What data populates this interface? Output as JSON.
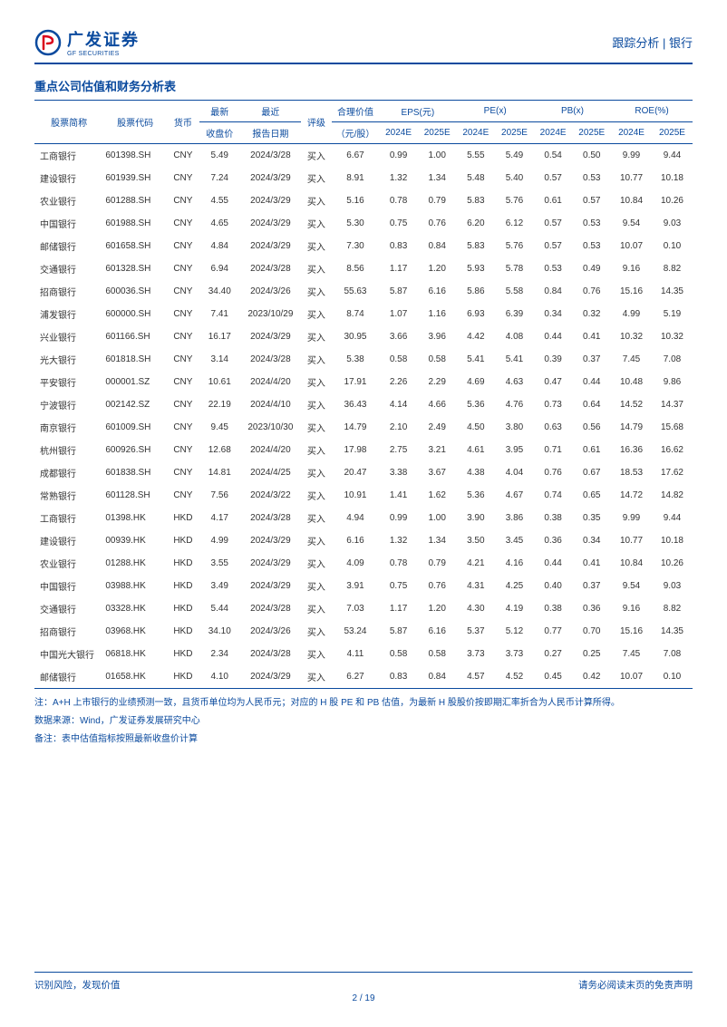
{
  "header": {
    "logo_cn": "广发证券",
    "logo_en": "GF SECURITIES",
    "report_type": "跟踪分析 | 银行"
  },
  "table": {
    "title": "重点公司估值和财务分析表",
    "columns_top": {
      "name": "股票简称",
      "code": "股票代码",
      "currency": "货币",
      "price": "最新",
      "report_date": "最近",
      "rating": "评级",
      "fair_value": "合理价值",
      "eps": "EPS(元)",
      "pe": "PE(x)",
      "pb": "PB(x)",
      "roe": "ROE(%)"
    },
    "columns_sub": {
      "price": "收盘价",
      "report_date": "报告日期",
      "fair_value": "（元/股）",
      "y2024e": "2024E",
      "y2025e": "2025E"
    },
    "rows": [
      {
        "name": "工商银行",
        "code": "601398.SH",
        "curr": "CNY",
        "price": "5.49",
        "date": "2024/3/28",
        "rating": "买入",
        "fv": "6.67",
        "eps24": "0.99",
        "eps25": "1.00",
        "pe24": "5.55",
        "pe25": "5.49",
        "pb24": "0.54",
        "pb25": "0.50",
        "roe24": "9.99",
        "roe25": "9.44"
      },
      {
        "name": "建设银行",
        "code": "601939.SH",
        "curr": "CNY",
        "price": "7.24",
        "date": "2024/3/29",
        "rating": "买入",
        "fv": "8.91",
        "eps24": "1.32",
        "eps25": "1.34",
        "pe24": "5.48",
        "pe25": "5.40",
        "pb24": "0.57",
        "pb25": "0.53",
        "roe24": "10.77",
        "roe25": "10.18"
      },
      {
        "name": "农业银行",
        "code": "601288.SH",
        "curr": "CNY",
        "price": "4.55",
        "date": "2024/3/29",
        "rating": "买入",
        "fv": "5.16",
        "eps24": "0.78",
        "eps25": "0.79",
        "pe24": "5.83",
        "pe25": "5.76",
        "pb24": "0.61",
        "pb25": "0.57",
        "roe24": "10.84",
        "roe25": "10.26"
      },
      {
        "name": "中国银行",
        "code": "601988.SH",
        "curr": "CNY",
        "price": "4.65",
        "date": "2024/3/29",
        "rating": "买入",
        "fv": "5.30",
        "eps24": "0.75",
        "eps25": "0.76",
        "pe24": "6.20",
        "pe25": "6.12",
        "pb24": "0.57",
        "pb25": "0.53",
        "roe24": "9.54",
        "roe25": "9.03"
      },
      {
        "name": "邮储银行",
        "code": "601658.SH",
        "curr": "CNY",
        "price": "4.84",
        "date": "2024/3/29",
        "rating": "买入",
        "fv": "7.30",
        "eps24": "0.83",
        "eps25": "0.84",
        "pe24": "5.83",
        "pe25": "5.76",
        "pb24": "0.57",
        "pb25": "0.53",
        "roe24": "10.07",
        "roe25": "0.10"
      },
      {
        "name": "交通银行",
        "code": "601328.SH",
        "curr": "CNY",
        "price": "6.94",
        "date": "2024/3/28",
        "rating": "买入",
        "fv": "8.56",
        "eps24": "1.17",
        "eps25": "1.20",
        "pe24": "5.93",
        "pe25": "5.78",
        "pb24": "0.53",
        "pb25": "0.49",
        "roe24": "9.16",
        "roe25": "8.82"
      },
      {
        "name": "招商银行",
        "code": "600036.SH",
        "curr": "CNY",
        "price": "34.40",
        "date": "2024/3/26",
        "rating": "买入",
        "fv": "55.63",
        "eps24": "5.87",
        "eps25": "6.16",
        "pe24": "5.86",
        "pe25": "5.58",
        "pb24": "0.84",
        "pb25": "0.76",
        "roe24": "15.16",
        "roe25": "14.35"
      },
      {
        "name": "浦发银行",
        "code": "600000.SH",
        "curr": "CNY",
        "price": "7.41",
        "date": "2023/10/29",
        "rating": "买入",
        "fv": "8.74",
        "eps24": "1.07",
        "eps25": "1.16",
        "pe24": "6.93",
        "pe25": "6.39",
        "pb24": "0.34",
        "pb25": "0.32",
        "roe24": "4.99",
        "roe25": "5.19"
      },
      {
        "name": "兴业银行",
        "code": "601166.SH",
        "curr": "CNY",
        "price": "16.17",
        "date": "2024/3/29",
        "rating": "买入",
        "fv": "30.95",
        "eps24": "3.66",
        "eps25": "3.96",
        "pe24": "4.42",
        "pe25": "4.08",
        "pb24": "0.44",
        "pb25": "0.41",
        "roe24": "10.32",
        "roe25": "10.32"
      },
      {
        "name": "光大银行",
        "code": "601818.SH",
        "curr": "CNY",
        "price": "3.14",
        "date": "2024/3/28",
        "rating": "买入",
        "fv": "5.38",
        "eps24": "0.58",
        "eps25": "0.58",
        "pe24": "5.41",
        "pe25": "5.41",
        "pb24": "0.39",
        "pb25": "0.37",
        "roe24": "7.45",
        "roe25": "7.08"
      },
      {
        "name": "平安银行",
        "code": "000001.SZ",
        "curr": "CNY",
        "price": "10.61",
        "date": "2024/4/20",
        "rating": "买入",
        "fv": "17.91",
        "eps24": "2.26",
        "eps25": "2.29",
        "pe24": "4.69",
        "pe25": "4.63",
        "pb24": "0.47",
        "pb25": "0.44",
        "roe24": "10.48",
        "roe25": "9.86"
      },
      {
        "name": "宁波银行",
        "code": "002142.SZ",
        "curr": "CNY",
        "price": "22.19",
        "date": "2024/4/10",
        "rating": "买入",
        "fv": "36.43",
        "eps24": "4.14",
        "eps25": "4.66",
        "pe24": "5.36",
        "pe25": "4.76",
        "pb24": "0.73",
        "pb25": "0.64",
        "roe24": "14.52",
        "roe25": "14.37"
      },
      {
        "name": "南京银行",
        "code": "601009.SH",
        "curr": "CNY",
        "price": "9.45",
        "date": "2023/10/30",
        "rating": "买入",
        "fv": "14.79",
        "eps24": "2.10",
        "eps25": "2.49",
        "pe24": "4.50",
        "pe25": "3.80",
        "pb24": "0.63",
        "pb25": "0.56",
        "roe24": "14.79",
        "roe25": "15.68"
      },
      {
        "name": "杭州银行",
        "code": "600926.SH",
        "curr": "CNY",
        "price": "12.68",
        "date": "2024/4/20",
        "rating": "买入",
        "fv": "17.98",
        "eps24": "2.75",
        "eps25": "3.21",
        "pe24": "4.61",
        "pe25": "3.95",
        "pb24": "0.71",
        "pb25": "0.61",
        "roe24": "16.36",
        "roe25": "16.62"
      },
      {
        "name": "成都银行",
        "code": "601838.SH",
        "curr": "CNY",
        "price": "14.81",
        "date": "2024/4/25",
        "rating": "买入",
        "fv": "20.47",
        "eps24": "3.38",
        "eps25": "3.67",
        "pe24": "4.38",
        "pe25": "4.04",
        "pb24": "0.76",
        "pb25": "0.67",
        "roe24": "18.53",
        "roe25": "17.62"
      },
      {
        "name": "常熟银行",
        "code": "601128.SH",
        "curr": "CNY",
        "price": "7.56",
        "date": "2024/3/22",
        "rating": "买入",
        "fv": "10.91",
        "eps24": "1.41",
        "eps25": "1.62",
        "pe24": "5.36",
        "pe25": "4.67",
        "pb24": "0.74",
        "pb25": "0.65",
        "roe24": "14.72",
        "roe25": "14.82"
      },
      {
        "name": "工商银行",
        "code": "01398.HK",
        "curr": "HKD",
        "price": "4.17",
        "date": "2024/3/28",
        "rating": "买入",
        "fv": "4.94",
        "eps24": "0.99",
        "eps25": "1.00",
        "pe24": "3.90",
        "pe25": "3.86",
        "pb24": "0.38",
        "pb25": "0.35",
        "roe24": "9.99",
        "roe25": "9.44"
      },
      {
        "name": "建设银行",
        "code": "00939.HK",
        "curr": "HKD",
        "price": "4.99",
        "date": "2024/3/29",
        "rating": "买入",
        "fv": "6.16",
        "eps24": "1.32",
        "eps25": "1.34",
        "pe24": "3.50",
        "pe25": "3.45",
        "pb24": "0.36",
        "pb25": "0.34",
        "roe24": "10.77",
        "roe25": "10.18"
      },
      {
        "name": "农业银行",
        "code": "01288.HK",
        "curr": "HKD",
        "price": "3.55",
        "date": "2024/3/29",
        "rating": "买入",
        "fv": "4.09",
        "eps24": "0.78",
        "eps25": "0.79",
        "pe24": "4.21",
        "pe25": "4.16",
        "pb24": "0.44",
        "pb25": "0.41",
        "roe24": "10.84",
        "roe25": "10.26"
      },
      {
        "name": "中国银行",
        "code": "03988.HK",
        "curr": "HKD",
        "price": "3.49",
        "date": "2024/3/29",
        "rating": "买入",
        "fv": "3.91",
        "eps24": "0.75",
        "eps25": "0.76",
        "pe24": "4.31",
        "pe25": "4.25",
        "pb24": "0.40",
        "pb25": "0.37",
        "roe24": "9.54",
        "roe25": "9.03"
      },
      {
        "name": "交通银行",
        "code": "03328.HK",
        "curr": "HKD",
        "price": "5.44",
        "date": "2024/3/28",
        "rating": "买入",
        "fv": "7.03",
        "eps24": "1.17",
        "eps25": "1.20",
        "pe24": "4.30",
        "pe25": "4.19",
        "pb24": "0.38",
        "pb25": "0.36",
        "roe24": "9.16",
        "roe25": "8.82"
      },
      {
        "name": "招商银行",
        "code": "03968.HK",
        "curr": "HKD",
        "price": "34.10",
        "date": "2024/3/26",
        "rating": "买入",
        "fv": "53.24",
        "eps24": "5.87",
        "eps25": "6.16",
        "pe24": "5.37",
        "pe25": "5.12",
        "pb24": "0.77",
        "pb25": "0.70",
        "roe24": "15.16",
        "roe25": "14.35"
      },
      {
        "name": "中国光大银行",
        "code": "06818.HK",
        "curr": "HKD",
        "price": "2.34",
        "date": "2024/3/28",
        "rating": "买入",
        "fv": "4.11",
        "eps24": "0.58",
        "eps25": "0.58",
        "pe24": "3.73",
        "pe25": "3.73",
        "pb24": "0.27",
        "pb25": "0.25",
        "roe24": "7.45",
        "roe25": "7.08"
      },
      {
        "name": "邮储银行",
        "code": "01658.HK",
        "curr": "HKD",
        "price": "4.10",
        "date": "2024/3/29",
        "rating": "买入",
        "fv": "6.27",
        "eps24": "0.83",
        "eps25": "0.84",
        "pe24": "4.57",
        "pe25": "4.52",
        "pb24": "0.45",
        "pb25": "0.42",
        "roe24": "10.07",
        "roe25": "0.10"
      }
    ]
  },
  "notes": {
    "line1": "注：A+H 上市银行的业绩预测一致，且货币单位均为人民币元；对应的 H 股 PE 和 PB 估值，为最新 H 股股价按即期汇率折合为人民币计算所得。",
    "line2": "数据来源：Wind，广发证券发展研究中心",
    "line3": "备注：表中估值指标按照最新收盘价计算"
  },
  "footer": {
    "left": "识别风险，发现价值",
    "right": "请务必阅读末页的免责声明",
    "page_current": "2",
    "page_sep": " / ",
    "page_total": "19"
  },
  "colors": {
    "brand": "#0a4a9e",
    "red": "#d9001b",
    "text": "#333333",
    "bg": "#ffffff"
  }
}
